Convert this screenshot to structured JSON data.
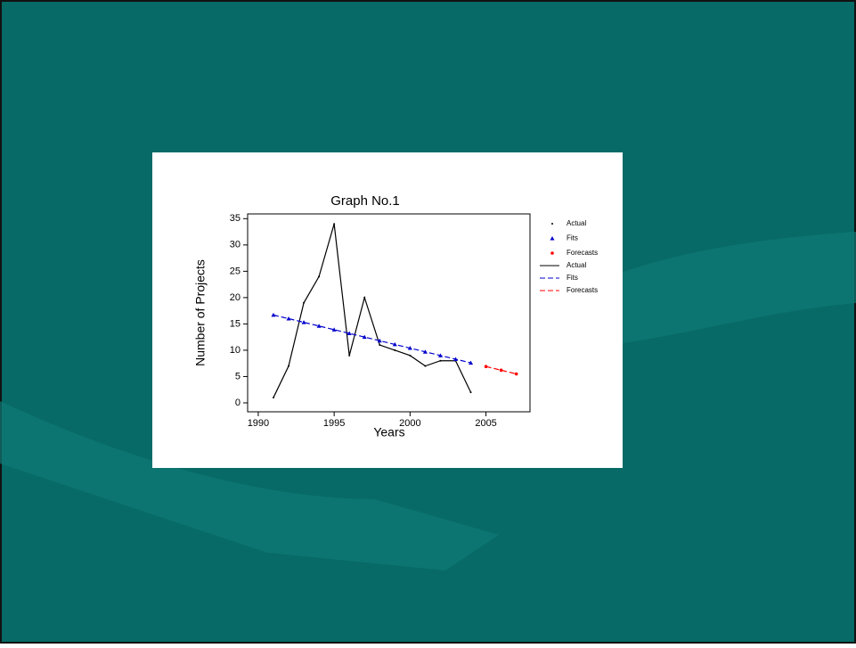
{
  "chart_data": {
    "type": "line",
    "title": "Graph No.1",
    "x_label": "Years",
    "y_label": "Number of Projects",
    "xlim": [
      1989.3,
      2007.9
    ],
    "ylim": [
      -1.7,
      35.9
    ],
    "xticks": [
      1990,
      1995,
      2000,
      2005
    ],
    "yticks": [
      0,
      5,
      10,
      15,
      20,
      25,
      30,
      35
    ],
    "series": [
      {
        "name": "Actual",
        "color": "#000000",
        "marker": "dot",
        "dash": false,
        "x": [
          1991,
          1992,
          1993,
          1994,
          1995,
          1996,
          1997,
          1998,
          1999,
          2000,
          2001,
          2002,
          2003,
          2004
        ],
        "values": [
          1,
          7,
          19,
          24,
          34,
          9,
          20,
          11,
          10,
          9,
          7,
          8,
          8,
          2
        ]
      },
      {
        "name": "Fits",
        "color": "#0000cc",
        "marker": "triangle",
        "dash": true,
        "x": [
          1991,
          1992,
          1993,
          1994,
          1995,
          1996,
          1997,
          1998,
          1999,
          2000,
          2001,
          2002,
          2003,
          2004
        ],
        "values": [
          16.7,
          16.0,
          15.3,
          14.6,
          13.9,
          13.2,
          12.5,
          11.8,
          11.1,
          10.4,
          9.7,
          9.0,
          8.3,
          7.6
        ]
      },
      {
        "name": "Forecasts",
        "color": "#ff0000",
        "marker": "circle",
        "dash": true,
        "x": [
          2005,
          2006,
          2007
        ],
        "values": [
          6.9,
          6.2,
          5.5
        ]
      }
    ]
  }
}
